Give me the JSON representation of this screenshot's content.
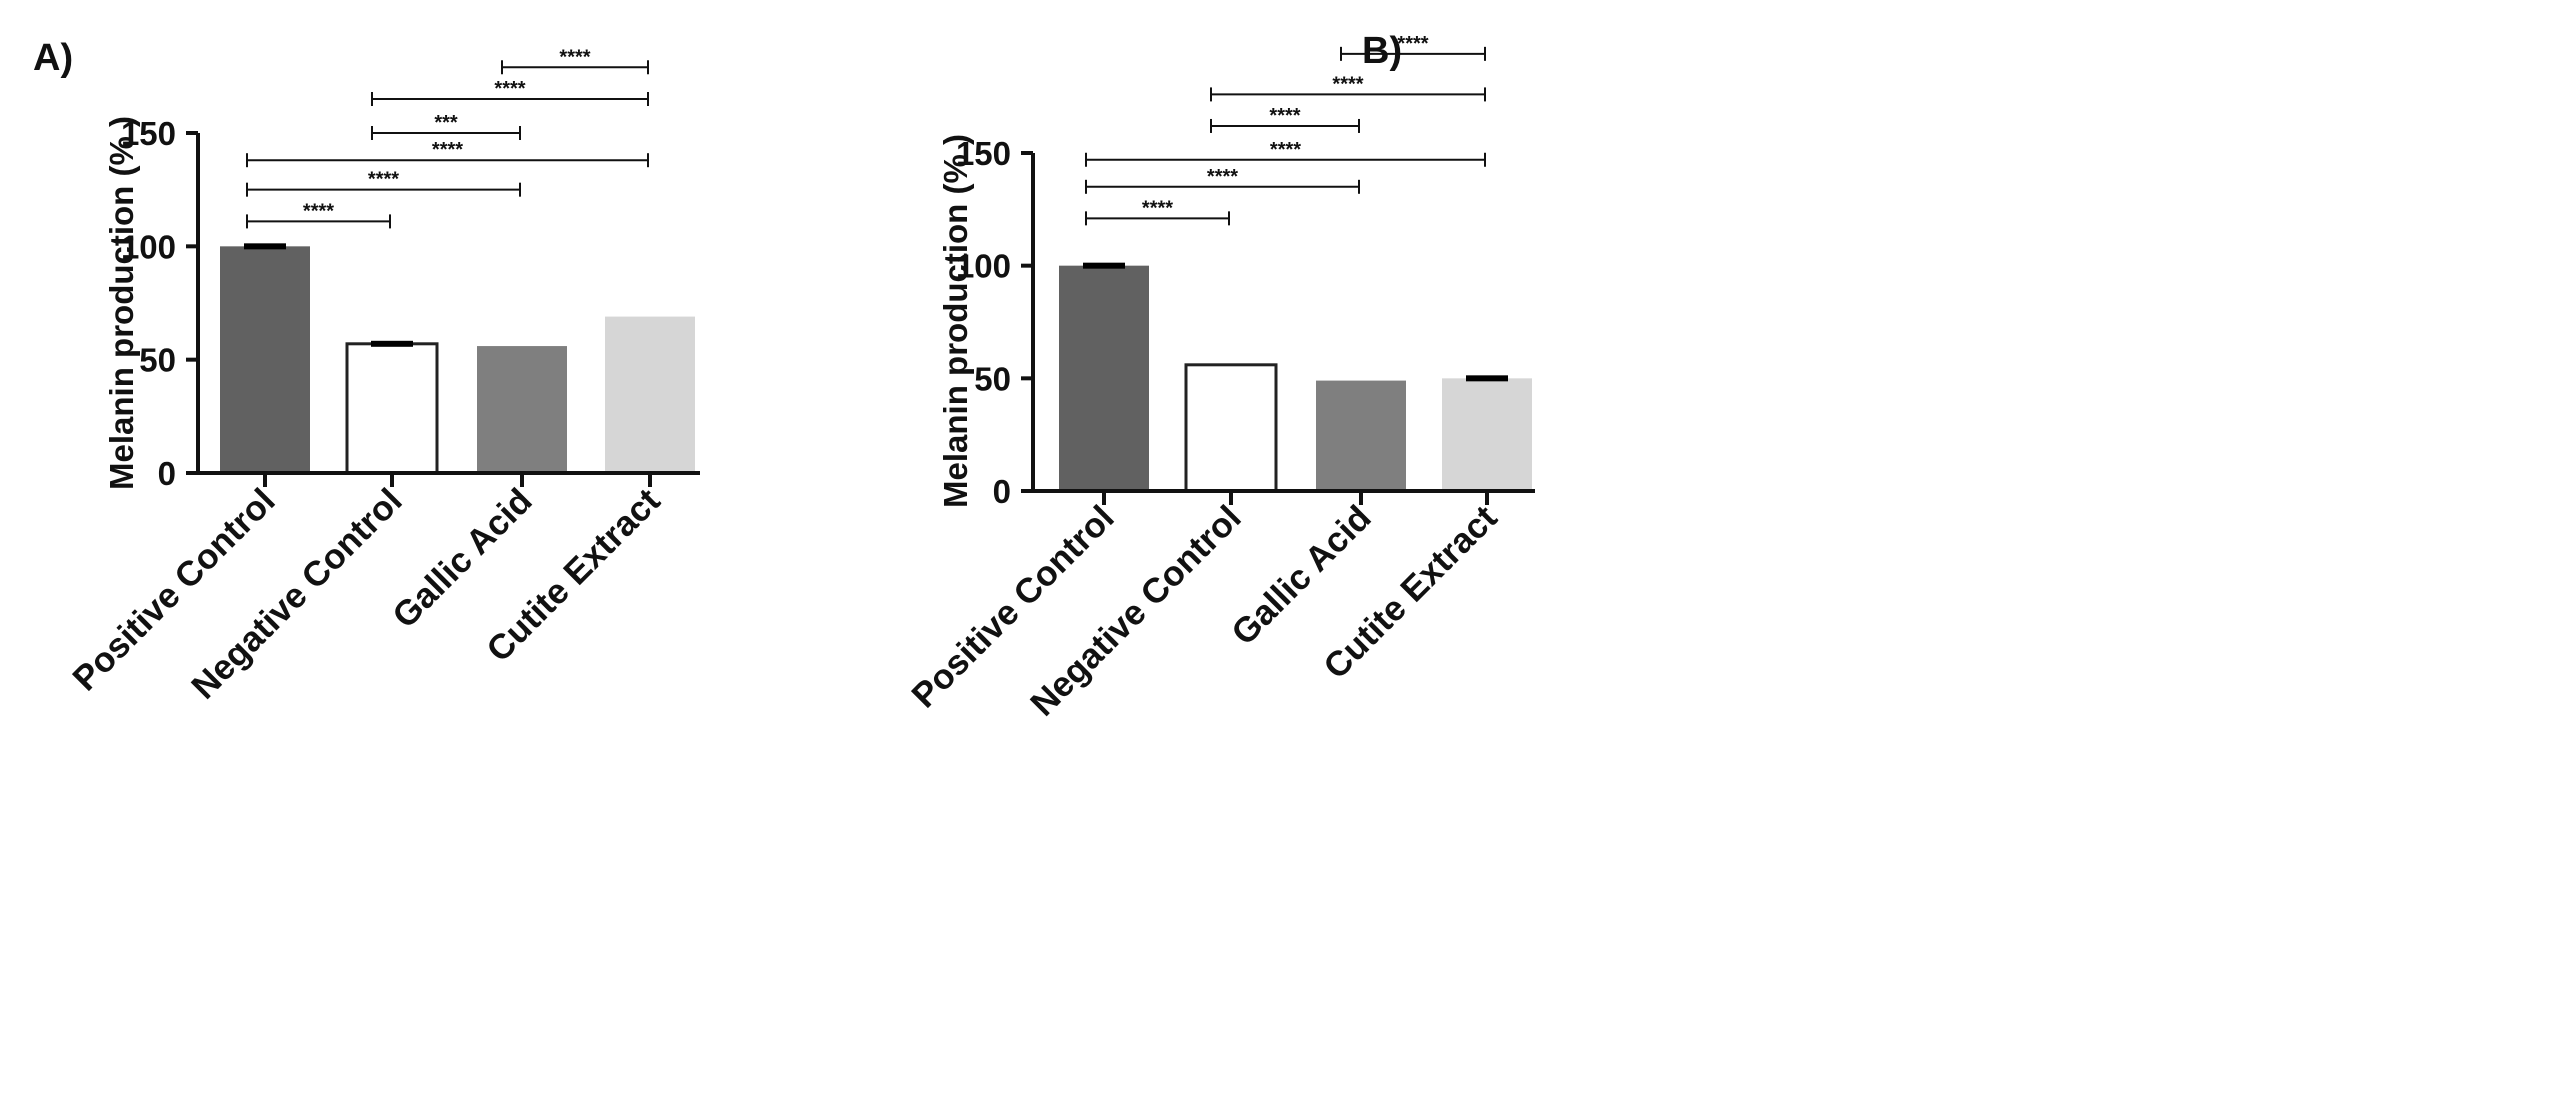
{
  "chart_data": [
    {
      "panel": "A)",
      "type": "bar",
      "title": "",
      "xlabel": "",
      "ylabel": "Melanin production (% )",
      "ylim": [
        0,
        150
      ],
      "yticks": [
        0,
        50,
        100,
        150
      ],
      "categories": [
        "Positive Control",
        "Negative Control",
        "Gallic Acid",
        "Cutite Extract"
      ],
      "values": [
        100,
        57,
        56,
        69
      ],
      "errors": [
        1,
        1,
        0,
        0
      ],
      "bar_colors": [
        "#616161",
        "#ffffff",
        "#7f7f7f",
        "#d6d6d6"
      ],
      "significance": [
        {
          "from": 2,
          "to": 3,
          "label": "****",
          "y": 179
        },
        {
          "from": 1,
          "to": 3,
          "label": "****",
          "y": 165
        },
        {
          "from": 1,
          "to": 2,
          "label": "***",
          "y": 150
        },
        {
          "from": 0,
          "to": 3,
          "label": "****",
          "y": 138
        },
        {
          "from": 0,
          "to": 2,
          "label": "****",
          "y": 125
        },
        {
          "from": 0,
          "to": 1,
          "label": "****",
          "y": 111
        }
      ]
    },
    {
      "panel": "B)",
      "type": "bar",
      "title": "",
      "xlabel": "",
      "ylabel": "Melanin production (% )",
      "ylim": [
        0,
        150
      ],
      "yticks": [
        0,
        50,
        100,
        150
      ],
      "categories": [
        "Positive Control",
        "Negative Control",
        "Gallic Acid",
        "Cutite Extract"
      ],
      "values": [
        100,
        56,
        49,
        50
      ],
      "errors": [
        1,
        0,
        0,
        1
      ],
      "bar_colors": [
        "#616161",
        "#ffffff",
        "#7f7f7f",
        "#d6d6d6"
      ],
      "significance": [
        {
          "from": 2,
          "to": 3,
          "label": "****",
          "y": 194
        },
        {
          "from": 1,
          "to": 3,
          "label": "****",
          "y": 176
        },
        {
          "from": 1,
          "to": 2,
          "label": "****",
          "y": 162
        },
        {
          "from": 0,
          "to": 3,
          "label": "****",
          "y": 147
        },
        {
          "from": 0,
          "to": 2,
          "label": "****",
          "y": 135
        },
        {
          "from": 0,
          "to": 1,
          "label": "****",
          "y": 121
        }
      ]
    }
  ]
}
